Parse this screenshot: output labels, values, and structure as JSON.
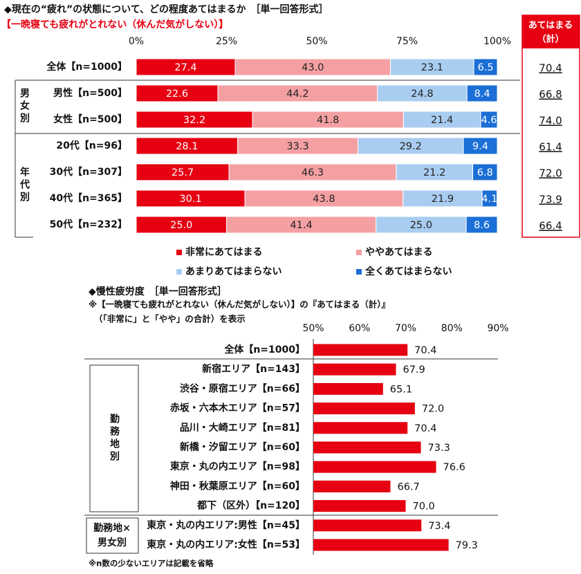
{
  "chart_data": [
    {
      "type": "stacked-bar",
      "title": "◆現在の“疲れ”の状態について、どの程度あてはまるか　［単一回答形式］",
      "subtitle": "【一晩寝ても疲れがとれない（休んだ気がしない）】",
      "categories": [
        "全体【n=1000】",
        "男性【n=500】",
        "女性【n=500】",
        "20代【n=96】",
        "30代【n=307】",
        "40代【n=365】",
        "50代【n=232】"
      ],
      "group_labels": [
        "男女別",
        "年代別"
      ],
      "xlim": [
        0,
        100
      ],
      "xticks": [
        {
          "value": 0,
          "label": "0%"
        },
        {
          "value": 25,
          "label": "25%"
        },
        {
          "value": 50,
          "label": "50%"
        },
        {
          "value": 75,
          "label": "75%"
        },
        {
          "value": 100,
          "label": "100%"
        }
      ],
      "legend": "bottom",
      "series": [
        {
          "name": "非常にあてはまる",
          "color": "#e60012",
          "values": [
            27.4,
            22.6,
            32.2,
            28.1,
            25.7,
            30.1,
            25.0
          ],
          "value_labels": [
            "27.4",
            "22.6",
            "32.2",
            "28.1",
            "25.7",
            "30.1",
            "25.0"
          ]
        },
        {
          "name": "ややあてはまる",
          "color": "#f4a0a3",
          "values": [
            43.0,
            44.2,
            41.8,
            33.3,
            46.3,
            43.8,
            41.4
          ],
          "value_labels": [
            "43.0",
            "44.2",
            "41.8",
            "33.3",
            "46.3",
            "43.8",
            "41.4"
          ]
        },
        {
          "name": "あまりあてはまらない",
          "color": "#a9cdf0",
          "values": [
            23.1,
            24.8,
            21.4,
            29.2,
            21.2,
            21.9,
            25.0
          ],
          "value_labels": [
            "23.1",
            "24.8",
            "21.4",
            "29.2",
            "21.2",
            "21.9",
            "25.0"
          ]
        },
        {
          "name": "全くあてはまらない",
          "color": "#1b6fd6",
          "values": [
            6.5,
            8.4,
            4.6,
            9.4,
            6.8,
            4.1,
            8.6
          ],
          "value_labels": [
            "6.5",
            "8.4",
            "4.6",
            "9.4",
            "6.8",
            "4.1",
            "8.6"
          ]
        }
      ],
      "totals": {
        "title": [
          "あてはまる",
          "（計）"
        ],
        "values": [
          70.4,
          66.8,
          74.0,
          61.4,
          72.0,
          73.9,
          66.4
        ],
        "value_labels": [
          "70.4",
          "66.8",
          "74.0",
          "61.4",
          "72.0",
          "73.9",
          "66.4"
        ]
      }
    },
    {
      "type": "bar",
      "title": "◆慢性疲労度　［単一回答形式］",
      "notes": [
        "※【一晩寝ても疲れがとれない（休んだ気がしない）】の『あてはまる（計）』",
        "（「非常に」と「やや」の合計）を表示"
      ],
      "categories": [
        "全体【n=1000】",
        "新宿エリア【n=143】",
        "渋谷・原宿エリア【n=66】",
        "赤坂・六本木エリア【n=57】",
        "品川・大崎エリア【n=81】",
        "新橋・汐留エリア【n=60】",
        "東京・丸の内エリア【n=98】",
        "神田・秋葉原エリア【n=60】",
        "都下（区外）【n=120】",
        "東京・丸の内エリア:男性【n=45】",
        "東京・丸の内エリア:女性【n=53】"
      ],
      "group_labels": [
        [
          "勤務地別"
        ],
        [
          "勤務地×",
          "男女別"
        ]
      ],
      "values": [
        70.4,
        67.9,
        65.1,
        72.0,
        70.4,
        73.3,
        76.6,
        66.7,
        70.0,
        73.4,
        79.3
      ],
      "value_labels": [
        "70.4",
        "67.9",
        "65.1",
        "72.0",
        "70.4",
        "73.3",
        "76.6",
        "66.7",
        "70.0",
        "73.4",
        "79.3"
      ],
      "color": "#e60012",
      "xlim": [
        50,
        90
      ],
      "xticks": [
        {
          "value": 50,
          "label": "50%"
        },
        {
          "value": 60,
          "label": "60%"
        },
        {
          "value": 70,
          "label": "70%"
        },
        {
          "value": 80,
          "label": "80%"
        },
        {
          "value": 90,
          "label": "90%"
        }
      ],
      "footnote": "※n数の少ないエリアは記載を省略"
    }
  ]
}
